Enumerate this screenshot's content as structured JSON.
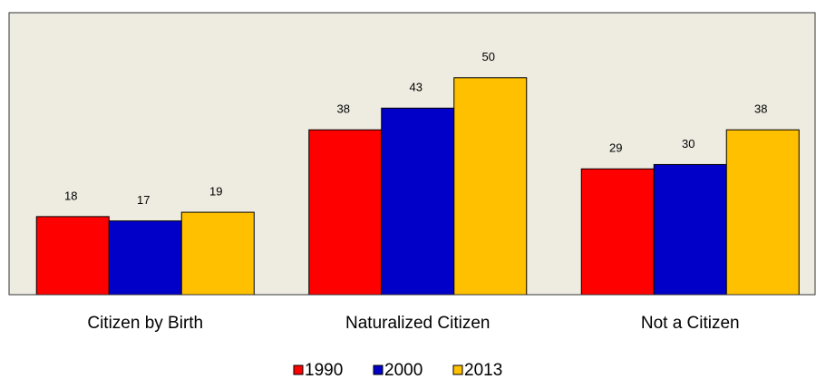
{
  "chart_data": {
    "type": "bar",
    "categories": [
      "Citizen by Birth",
      "Naturalized Citizen",
      "Not a Citizen"
    ],
    "series": [
      {
        "name": "1990",
        "color": "#ff0000",
        "values": [
          18,
          38,
          29
        ]
      },
      {
        "name": "2000",
        "color": "#0000c8",
        "values": [
          17,
          43,
          30
        ]
      },
      {
        "name": "2013",
        "color": "#ffc000",
        "values": [
          19,
          50,
          38
        ]
      }
    ],
    "ylim": [
      0,
      65
    ],
    "legend": "bottom"
  }
}
